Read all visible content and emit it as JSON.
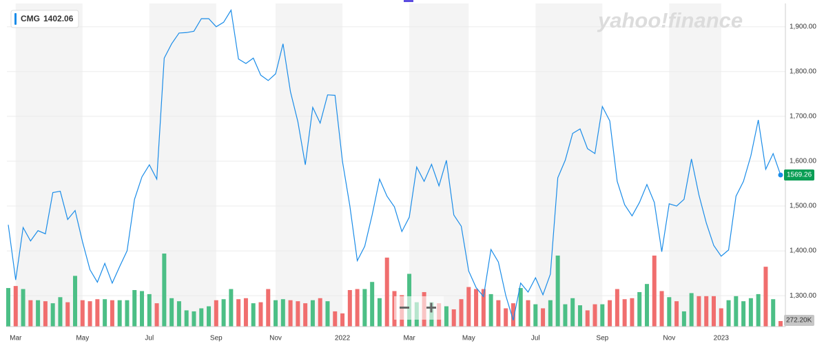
{
  "chart_data": {
    "type": "line",
    "watermark": "yahoo!finance",
    "quote": 1402.06,
    "categories": [
      null,
      "Mar",
      null,
      null,
      null,
      null,
      null,
      null,
      null,
      null,
      "May",
      null,
      null,
      null,
      null,
      null,
      null,
      null,
      null,
      "Jul",
      null,
      null,
      null,
      null,
      null,
      null,
      null,
      null,
      "Sep",
      null,
      null,
      null,
      null,
      null,
      null,
      null,
      "Nov",
      null,
      null,
      null,
      null,
      null,
      null,
      null,
      null,
      "2022",
      null,
      null,
      null,
      null,
      null,
      null,
      null,
      null,
      "Mar",
      null,
      null,
      null,
      null,
      null,
      null,
      null,
      "May",
      null,
      null,
      null,
      null,
      null,
      null,
      null,
      null,
      "Jul",
      null,
      null,
      null,
      null,
      null,
      null,
      null,
      null,
      "Sep",
      null,
      null,
      null,
      null,
      null,
      null,
      null,
      null,
      "Nov",
      null,
      null,
      null,
      null,
      null,
      null,
      "2023",
      null,
      null,
      null,
      null,
      null,
      null,
      null,
      null
    ],
    "series": [
      {
        "name": "CMG",
        "color": "#1a8ce8",
        "values": [
          1458,
          1335,
          1452,
          1422,
          1445,
          1438,
          1530,
          1533,
          1470,
          1490,
          1420,
          1358,
          1330,
          1372,
          1328,
          1365,
          1400,
          1515,
          1565,
          1592,
          1560,
          1830,
          1862,
          1886,
          1887,
          1890,
          1918,
          1918,
          1900,
          1910,
          1937,
          1828,
          1818,
          1830,
          1792,
          1780,
          1795,
          1862,
          1755,
          1688,
          1592,
          1720,
          1685,
          1748,
          1747,
          1600,
          1500,
          1378,
          1410,
          1480,
          1560,
          1522,
          1498,
          1443,
          1475,
          1587,
          1555,
          1593,
          1545,
          1602,
          1480,
          1455,
          1355,
          1318,
          1298,
          1403,
          1375,
          1300,
          1245,
          1328,
          1308,
          1340,
          1302,
          1348,
          1563,
          1602,
          1662,
          1672,
          1628,
          1617,
          1722,
          1690,
          1555,
          1503,
          1478,
          1508,
          1548,
          1508,
          1398,
          1505,
          1500,
          1515,
          1605,
          1525,
          1462,
          1412,
          1388,
          1402,
          1522,
          1555,
          1612,
          1692,
          1582,
          1617,
          1569.26
        ]
      }
    ],
    "volume": {
      "up_color": "#4cbf86",
      "down_color": "#f06e6e",
      "values": [
        1900,
        2000,
        1850,
        1300,
        1300,
        1250,
        1150,
        1450,
        1200,
        2500,
        1300,
        1250,
        1350,
        1350,
        1300,
        1300,
        1300,
        1800,
        1750,
        1600,
        1150,
        3600,
        1400,
        1250,
        800,
        750,
        900,
        1000,
        1300,
        1350,
        1850,
        1350,
        1400,
        1150,
        1200,
        1850,
        1300,
        1350,
        1300,
        1250,
        1150,
        1300,
        1400,
        1250,
        750,
        650,
        1800,
        1850,
        1850,
        2200,
        1400,
        3400,
        1750,
        1550,
        2600,
        1200,
        1700,
        1200,
        1150,
        1000,
        850,
        1350,
        1950,
        1850,
        1850,
        1600,
        1300,
        900,
        1150,
        1900,
        1300,
        1100,
        900,
        1300,
        3500,
        1100,
        1400,
        1050,
        800,
        1100,
        1100,
        1300,
        1850,
        1350,
        1400,
        1700,
        2100,
        3500,
        1750,
        1450,
        1250,
        750,
        1650,
        1500,
        1500,
        1500,
        900,
        1300,
        1500,
        1250,
        1400,
        1600,
        2950,
        1350,
        272.2
      ],
      "value_labels": [
        null,
        null,
        null,
        null,
        null,
        null,
        null,
        null,
        null,
        null,
        null,
        null,
        null,
        null,
        null,
        null,
        null,
        null,
        null,
        null,
        null,
        null,
        null,
        null,
        null,
        null,
        null,
        null,
        null,
        null,
        null,
        null,
        null,
        null,
        null,
        null,
        null,
        null,
        null,
        null,
        null,
        null,
        null,
        null,
        null,
        null,
        null,
        null,
        null,
        null,
        null,
        null,
        null,
        null,
        null,
        null,
        null,
        null,
        null,
        null,
        null,
        null,
        null,
        null,
        null,
        null,
        null,
        null,
        null,
        null,
        null,
        null,
        null,
        null,
        null,
        null,
        null,
        null,
        null,
        null,
        null,
        null,
        null,
        null,
        null,
        null,
        null,
        null,
        null,
        null,
        null,
        null,
        null,
        null,
        null,
        null,
        null,
        null,
        null,
        null,
        null,
        null,
        null,
        null,
        "272.20K"
      ]
    },
    "ylim": [
      1231,
      1952
    ],
    "yticks": [
      {
        "value": 1300,
        "label": "1,300.00"
      },
      {
        "value": 1400,
        "label": "1,400.00"
      },
      {
        "value": 1500,
        "label": "1,500.00"
      },
      {
        "value": 1600,
        "label": "1,600.00"
      },
      {
        "value": 1700,
        "label": "1,700.00"
      },
      {
        "value": 1800,
        "label": "1,800.00"
      },
      {
        "value": 1900,
        "label": "1,900.00"
      }
    ],
    "grid": true
  }
}
